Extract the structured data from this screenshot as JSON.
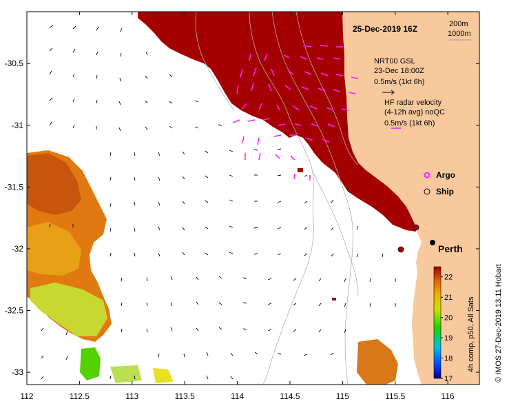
{
  "map": {
    "date_title": "25-Dec-2019 16Z",
    "depth_contours": [
      "200m",
      "1000m"
    ],
    "lon_ticks": [
      112,
      112.5,
      113,
      113.5,
      114,
      114.5,
      115,
      115.5,
      116
    ],
    "lon_tick_labels": [
      "112",
      "112.5",
      "113",
      "113.5",
      "114",
      "114.5",
      "115",
      "115.5",
      "116"
    ],
    "lat_ticks": [
      -30.5,
      -31,
      -31.5,
      -32,
      -32.5,
      -33
    ],
    "lat_tick_labels": [
      "-30.5",
      "-31",
      "-31.5",
      "-32",
      "-32.5",
      "-33"
    ],
    "lon_range": [
      112,
      116.3
    ],
    "lat_range": [
      -33.1,
      -30.08
    ],
    "model_legend": {
      "line1": "NRT00 GSL",
      "line2": "23-Dec 18:00Z",
      "scale": "0.5m/s (1kt 6h)"
    },
    "radar_legend": {
      "line1": "HF radar velocity",
      "line2": "(4-12h avg) noQC",
      "scale": "0.5m/s (1kt 6h)"
    },
    "markers": {
      "argo_label": "Argo",
      "ship_label": "Ship"
    },
    "city": {
      "name": "Perth",
      "lon": 115.86,
      "lat": -31.95
    },
    "colorbar": {
      "ticks": [
        17,
        18,
        19,
        20,
        21,
        22
      ],
      "tick_labels": [
        "17",
        "18",
        "19",
        "20",
        "21",
        "22"
      ],
      "range": [
        17,
        22.5
      ],
      "title": "4h comp, p50, All Sats"
    },
    "credit": "© IMOS 27-Dec-2019 13:11 Hobart",
    "colors": {
      "land": "#f9c99e",
      "warm_sst": "#a50000",
      "radar_arrows": "#ff22ff",
      "contour": "#aaaaaa"
    }
  }
}
